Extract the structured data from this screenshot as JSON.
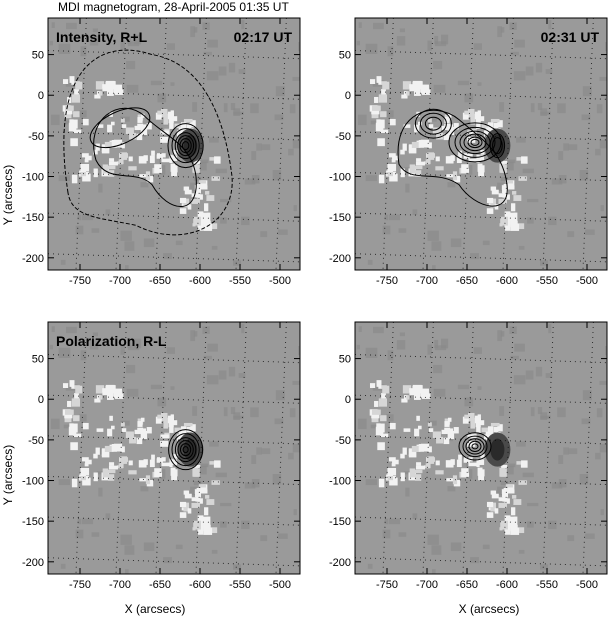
{
  "figure_title": "MDI magnetogram, 28-April-2005 01:35 UT",
  "x_axis": {
    "label": "X (arcsecs)",
    "ticks": [
      "-750",
      "-700",
      "-650",
      "-600",
      "-550",
      "-500"
    ],
    "range": [
      -790,
      -475
    ]
  },
  "y_axis": {
    "label": "Y (arcsecs)",
    "ticks": [
      "50",
      "0",
      "-50",
      "-100",
      "-150",
      "-200"
    ],
    "range": [
      -215,
      95
    ]
  },
  "panels": [
    {
      "id": "top-left",
      "row_label": "Intensity, R+L",
      "time_label": "02:17 UT",
      "kind": "intensity-early"
    },
    {
      "id": "top-right",
      "row_label": "",
      "time_label": "02:31 UT",
      "kind": "intensity-late"
    },
    {
      "id": "bottom-left",
      "row_label": "Polarization, R-L",
      "time_label": "",
      "kind": "polar-early"
    },
    {
      "id": "bottom-right",
      "row_label": "",
      "time_label": "",
      "kind": "polar-late"
    }
  ],
  "colors": {
    "background": "#9a9a9a",
    "contour": "#000000",
    "bright": "#f2f2f2",
    "dark": "#4a4a4a"
  }
}
